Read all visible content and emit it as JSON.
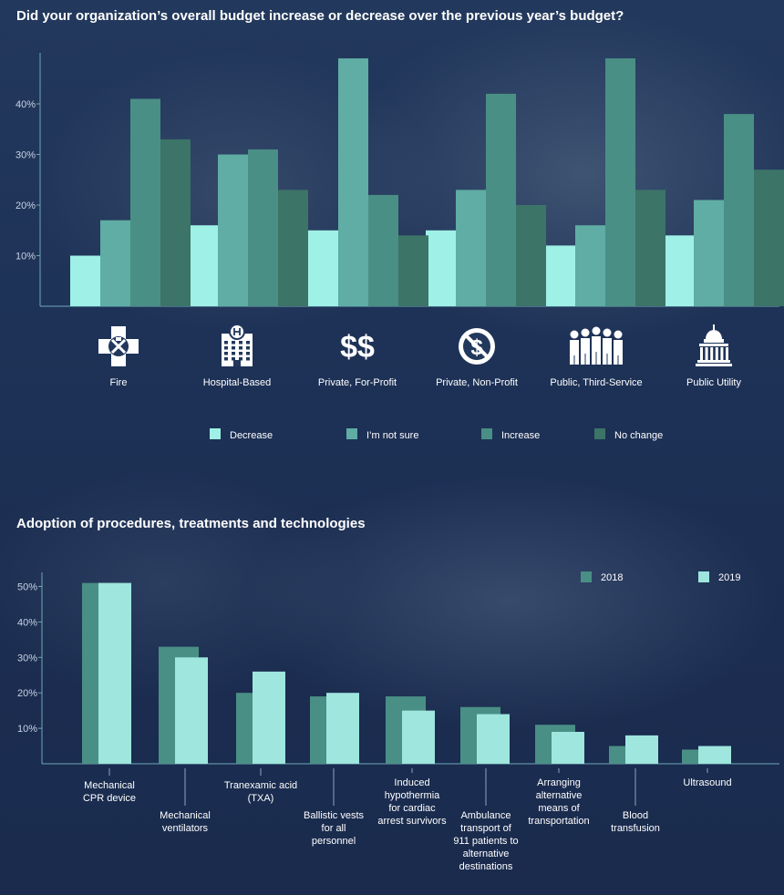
{
  "chart_data": [
    {
      "type": "bar",
      "title": "Did your organization’s overall budget increase or decrease over the previous year’s budget?",
      "categories": [
        "Fire",
        "Hospital-Based",
        "Private, For-Profit",
        "Private, Non-Profit",
        "Public, Third-Service",
        "Public Utility"
      ],
      "category_icons": [
        "fire-badge-icon",
        "hospital-icon",
        "dollar-signs-icon",
        "no-dollar-icon",
        "people-group-icon",
        "capitol-building-icon"
      ],
      "series": [
        {
          "name": "Decrease",
          "color": "#9ff0e6",
          "values": [
            10,
            16,
            15,
            15,
            12,
            14
          ]
        },
        {
          "name": "I’m not sure",
          "color": "#5fada4",
          "values": [
            17,
            30,
            49,
            23,
            16,
            21
          ]
        },
        {
          "name": "Increase",
          "color": "#4a8f85",
          "values": [
            41,
            31,
            22,
            42,
            49,
            38
          ]
        },
        {
          "name": "No change",
          "color": "#3c7468",
          "values": [
            33,
            23,
            14,
            20,
            23,
            27
          ]
        }
      ],
      "yticks": [
        "10%",
        "20%",
        "30%",
        "40%"
      ],
      "ytick_values": [
        10,
        20,
        30,
        40
      ],
      "ylim": [
        0,
        50
      ],
      "grid": false,
      "legend_position": "bottom"
    },
    {
      "type": "bar",
      "title": "Adoption of procedures, treatments and technologies",
      "categories": [
        "Mechanical CPR device",
        "Mechanical ventilators",
        "Tranexamic acid (TXA)",
        "Ballistic vests for all personnel",
        "Induced hypothermia for cardiac arrest survivors",
        "Ambulance transport of 911 patients to alternative destinations",
        "Arranging alternative means of transportation",
        "Blood transfusion",
        "Ultrasound"
      ],
      "category_label_lines": [
        [
          "Mechanical",
          "CPR device"
        ],
        [
          "Mechanical",
          "ventilators"
        ],
        [
          "Tranexamic acid",
          "(TXA)"
        ],
        [
          "Ballistic vests",
          "for all",
          "personnel"
        ],
        [
          "Induced",
          "hypothermia",
          "for cardiac",
          "arrest survivors"
        ],
        [
          "Ambulance",
          "transport of",
          "911 patients to",
          "alternative",
          "destinations"
        ],
        [
          "Arranging",
          "alternative",
          "means of",
          "transportation"
        ],
        [
          "Blood",
          "transfusion"
        ],
        [
          "Ultrasound"
        ]
      ],
      "series": [
        {
          "name": "2018",
          "color": "#4a8f85",
          "values": [
            51,
            33,
            20,
            19,
            19,
            16,
            11,
            5,
            4
          ]
        },
        {
          "name": "2019",
          "color": "#9ee6de",
          "values": [
            51,
            30,
            26,
            20,
            15,
            14,
            9,
            8,
            5
          ]
        }
      ],
      "yticks": [
        "10%",
        "20%",
        "30%",
        "40%",
        "50%"
      ],
      "ytick_values": [
        10,
        20,
        30,
        40,
        50
      ],
      "ylim": [
        0,
        55
      ],
      "grid": false,
      "legend_position": "top-right"
    }
  ]
}
